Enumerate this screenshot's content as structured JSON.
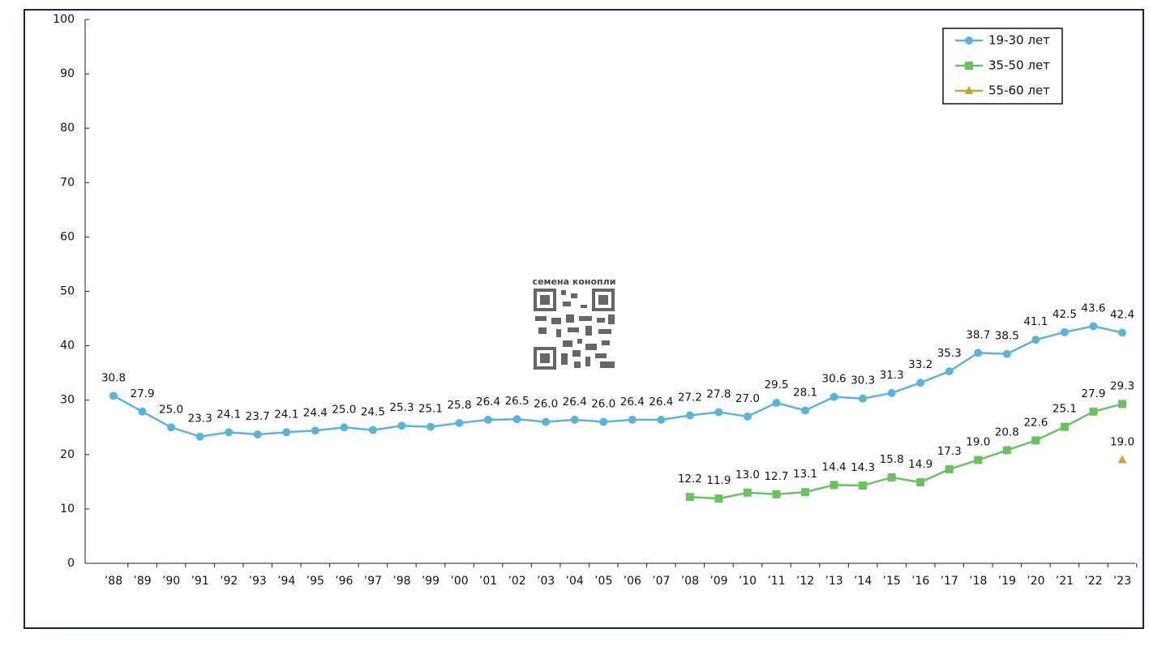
{
  "chart_data": {
    "type": "line",
    "watermark": "семена конопли",
    "categories": [
      "’88",
      "’89",
      "’90",
      "’91",
      "’92",
      "’93",
      "’94",
      "’95",
      "’96",
      "’97",
      "’98",
      "’99",
      "’00",
      "’01",
      "’02",
      "’03",
      "’04",
      "’05",
      "’06",
      "’07",
      "’08",
      "’09",
      "’10",
      "’11",
      "’12",
      "’13",
      "’14",
      "’15",
      "’16",
      "’17",
      "’18",
      "’19",
      "’20",
      "’21",
      "’22",
      "’23"
    ],
    "series": [
      {
        "name": "19-30 лет",
        "color": "#5ab4d8",
        "marker": "circle",
        "values": [
          30.8,
          27.9,
          25.0,
          23.3,
          24.1,
          23.7,
          24.1,
          24.4,
          25.0,
          24.5,
          25.3,
          25.1,
          25.8,
          26.4,
          26.5,
          26.0,
          26.4,
          26.0,
          26.4,
          26.4,
          27.2,
          27.8,
          27.0,
          29.5,
          28.1,
          30.6,
          30.3,
          31.3,
          33.2,
          35.3,
          38.7,
          38.5,
          41.1,
          42.5,
          43.6,
          42.4
        ],
        "value_labels": [
          "30.8",
          "27.9",
          "25.0",
          "23.3",
          "24.1",
          "23.7",
          "24.1",
          "24.4",
          "25.0",
          "24.5",
          "25.3",
          "25.1",
          "25.8",
          "26.4",
          "26.5",
          "26.0",
          "26.4",
          "26.0",
          "26.4",
          "26.4",
          "27.2",
          "27.8",
          "27.0",
          "29.5",
          "28.1",
          "30.6",
          "30.3",
          "31.3",
          "33.2",
          "35.3",
          "38.7",
          "38.5",
          "41.1",
          "42.5",
          "43.6",
          "42.4"
        ]
      },
      {
        "name": "35-50 лет",
        "color": "#6cc062",
        "marker": "square",
        "values": [
          null,
          null,
          null,
          null,
          null,
          null,
          null,
          null,
          null,
          null,
          null,
          null,
          null,
          null,
          null,
          null,
          null,
          null,
          null,
          null,
          12.2,
          11.9,
          13.0,
          12.7,
          13.1,
          14.4,
          14.3,
          15.8,
          14.9,
          17.3,
          19.0,
          20.8,
          22.6,
          25.1,
          27.9,
          29.3
        ],
        "value_labels": [
          null,
          null,
          null,
          null,
          null,
          null,
          null,
          null,
          null,
          null,
          null,
          null,
          null,
          null,
          null,
          null,
          null,
          null,
          null,
          null,
          "12.2",
          "11.9",
          "13.0",
          "12.7",
          "13.1",
          "14.4",
          "14.3",
          "15.8",
          "14.9",
          "17.3",
          "19.0",
          "20.8",
          "22.6",
          "25.1",
          "27.9",
          "29.3"
        ]
      },
      {
        "name": "55-60 лет",
        "color": "#c8a040",
        "marker": "triangle",
        "values": [
          null,
          null,
          null,
          null,
          null,
          null,
          null,
          null,
          null,
          null,
          null,
          null,
          null,
          null,
          null,
          null,
          null,
          null,
          null,
          null,
          null,
          null,
          null,
          null,
          null,
          null,
          null,
          null,
          null,
          null,
          null,
          null,
          null,
          null,
          null,
          19.0
        ],
        "value_labels": [
          null,
          null,
          null,
          null,
          null,
          null,
          null,
          null,
          null,
          null,
          null,
          null,
          null,
          null,
          null,
          null,
          null,
          null,
          null,
          null,
          null,
          null,
          null,
          null,
          null,
          null,
          null,
          null,
          null,
          null,
          null,
          null,
          null,
          null,
          null,
          "19.0"
        ]
      }
    ],
    "ylim": [
      0,
      100
    ],
    "yticks": [
      0,
      10,
      20,
      30,
      40,
      50,
      60,
      70,
      80,
      90,
      100
    ],
    "legend": "upper right"
  }
}
